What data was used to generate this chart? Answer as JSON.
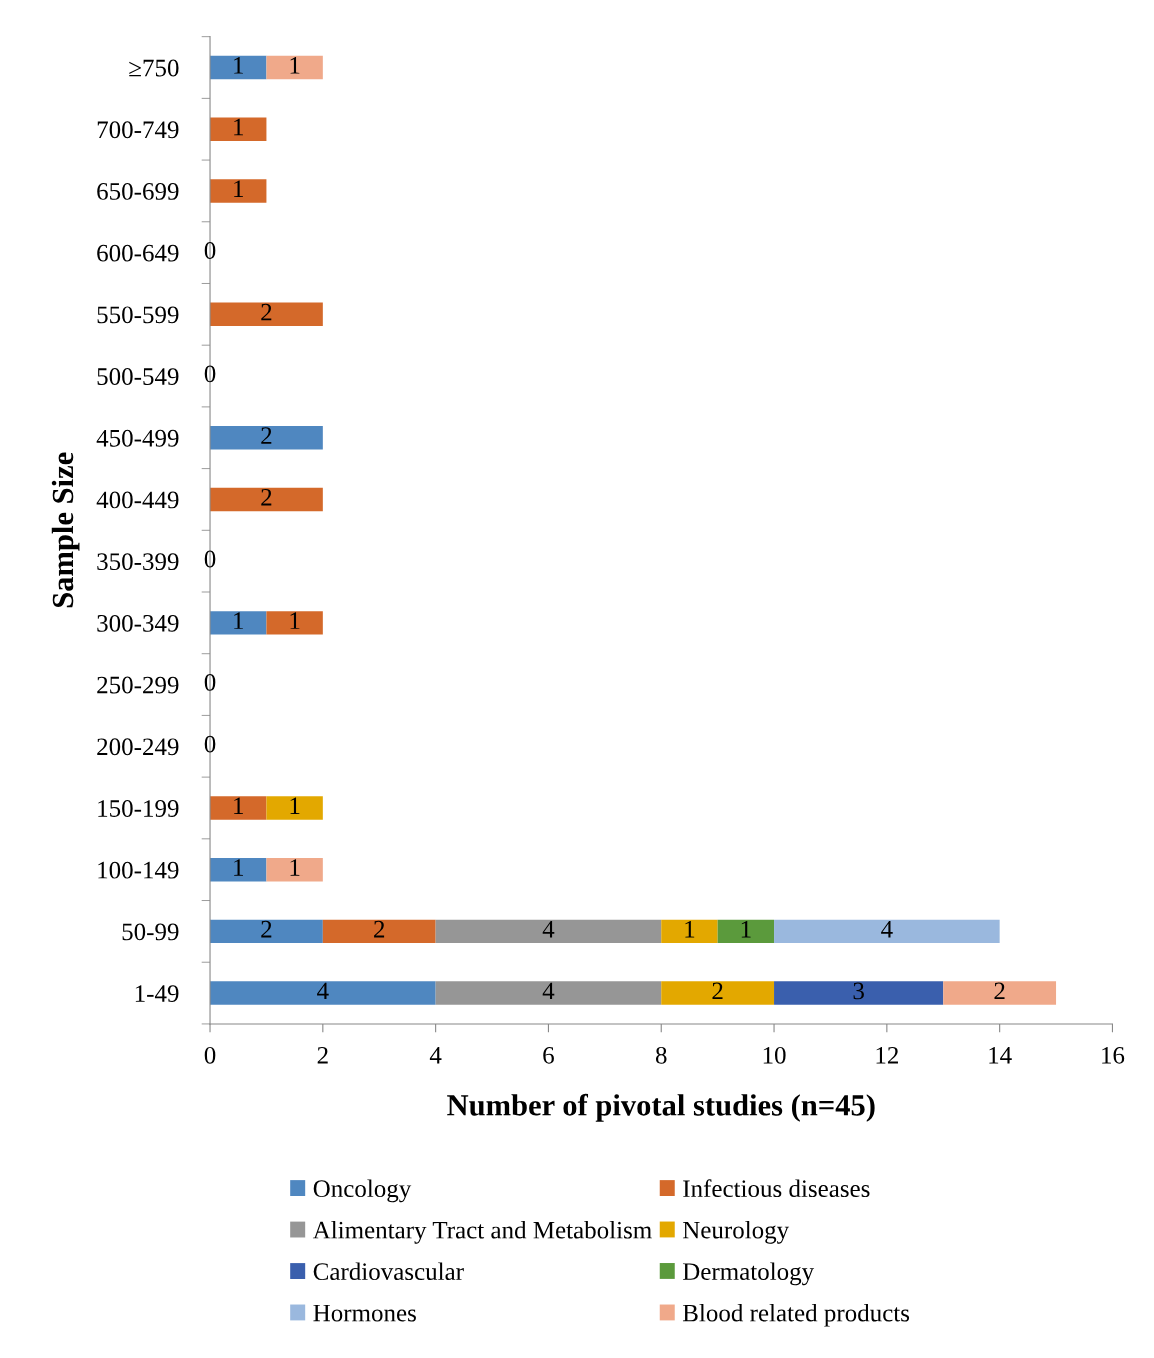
{
  "chart_data": {
    "type": "bar",
    "orientation": "horizontal",
    "stacked": true,
    "xlabel": "Number of pivotal studies (n=45)",
    "ylabel": "Sample Size",
    "categories": [
      "≥750",
      "700-749",
      "650-699",
      "600-649",
      "550-599",
      "500-549",
      "450-499",
      "400-449",
      "350-399",
      "300-349",
      "250-299",
      "200-249",
      "150-199",
      "100-149",
      "50-99",
      "1-49"
    ],
    "series": [
      {
        "name": "Oncology",
        "color": "#4f87c0",
        "values": [
          1,
          null,
          null,
          0,
          null,
          0,
          2,
          null,
          0,
          1,
          0,
          0,
          null,
          1,
          2,
          4
        ],
        "value_labels": [
          "1",
          null,
          null,
          "0",
          null,
          "0",
          "2",
          null,
          "0",
          "1",
          "0",
          "0",
          null,
          "1",
          "2",
          "4"
        ]
      },
      {
        "name": "Infectious diseases",
        "color": "#d4692a",
        "values": [
          null,
          1,
          1,
          null,
          2,
          null,
          null,
          2,
          null,
          1,
          null,
          null,
          1,
          null,
          2,
          null
        ],
        "value_labels": [
          null,
          "1",
          "1",
          null,
          "2",
          null,
          null,
          "2",
          null,
          "1",
          null,
          null,
          "1",
          null,
          "2",
          null
        ]
      },
      {
        "name": "Alimentary Tract and Metabolism",
        "color": "#969696",
        "values": [
          null,
          null,
          null,
          null,
          null,
          null,
          null,
          null,
          null,
          null,
          null,
          null,
          null,
          null,
          4,
          4
        ],
        "value_labels": [
          null,
          null,
          null,
          null,
          null,
          null,
          null,
          null,
          null,
          null,
          null,
          null,
          null,
          null,
          "4",
          "4"
        ]
      },
      {
        "name": "Neurology",
        "color": "#e3a800",
        "values": [
          null,
          null,
          null,
          null,
          null,
          null,
          null,
          null,
          null,
          null,
          null,
          null,
          1,
          null,
          1,
          2
        ],
        "value_labels": [
          null,
          null,
          null,
          null,
          null,
          null,
          null,
          null,
          null,
          null,
          null,
          null,
          "1",
          null,
          "1",
          "2"
        ]
      },
      {
        "name": "Cardiovascular",
        "color": "#3a5fad",
        "values": [
          null,
          null,
          null,
          null,
          null,
          null,
          null,
          null,
          null,
          null,
          null,
          null,
          null,
          null,
          null,
          3
        ],
        "value_labels": [
          null,
          null,
          null,
          null,
          null,
          null,
          null,
          null,
          null,
          null,
          null,
          null,
          null,
          null,
          null,
          "3"
        ]
      },
      {
        "name": "Dermatology",
        "color": "#5b9a3c",
        "values": [
          null,
          null,
          null,
          null,
          null,
          null,
          null,
          null,
          null,
          null,
          null,
          null,
          null,
          null,
          1,
          null
        ],
        "value_labels": [
          null,
          null,
          null,
          null,
          null,
          null,
          null,
          null,
          null,
          null,
          null,
          null,
          null,
          null,
          "1",
          null
        ]
      },
      {
        "name": "Hormones",
        "color": "#9ab8de",
        "values": [
          null,
          null,
          null,
          null,
          null,
          null,
          null,
          null,
          null,
          null,
          null,
          null,
          null,
          null,
          4,
          null
        ],
        "value_labels": [
          null,
          null,
          null,
          null,
          null,
          null,
          null,
          null,
          null,
          null,
          null,
          null,
          null,
          null,
          "4",
          null
        ]
      },
      {
        "name": "Blood related products",
        "color": "#f0a98a",
        "values": [
          1,
          null,
          null,
          null,
          null,
          null,
          null,
          null,
          null,
          null,
          null,
          null,
          null,
          1,
          null,
          2
        ],
        "value_labels": [
          "1",
          null,
          null,
          null,
          null,
          null,
          null,
          null,
          null,
          null,
          null,
          null,
          null,
          "1",
          null,
          "2"
        ]
      }
    ],
    "xlim": [
      0,
      16
    ],
    "xticks": [
      0,
      2,
      4,
      6,
      8,
      10,
      12,
      14,
      16
    ],
    "grid": false,
    "legend": "bottom"
  }
}
